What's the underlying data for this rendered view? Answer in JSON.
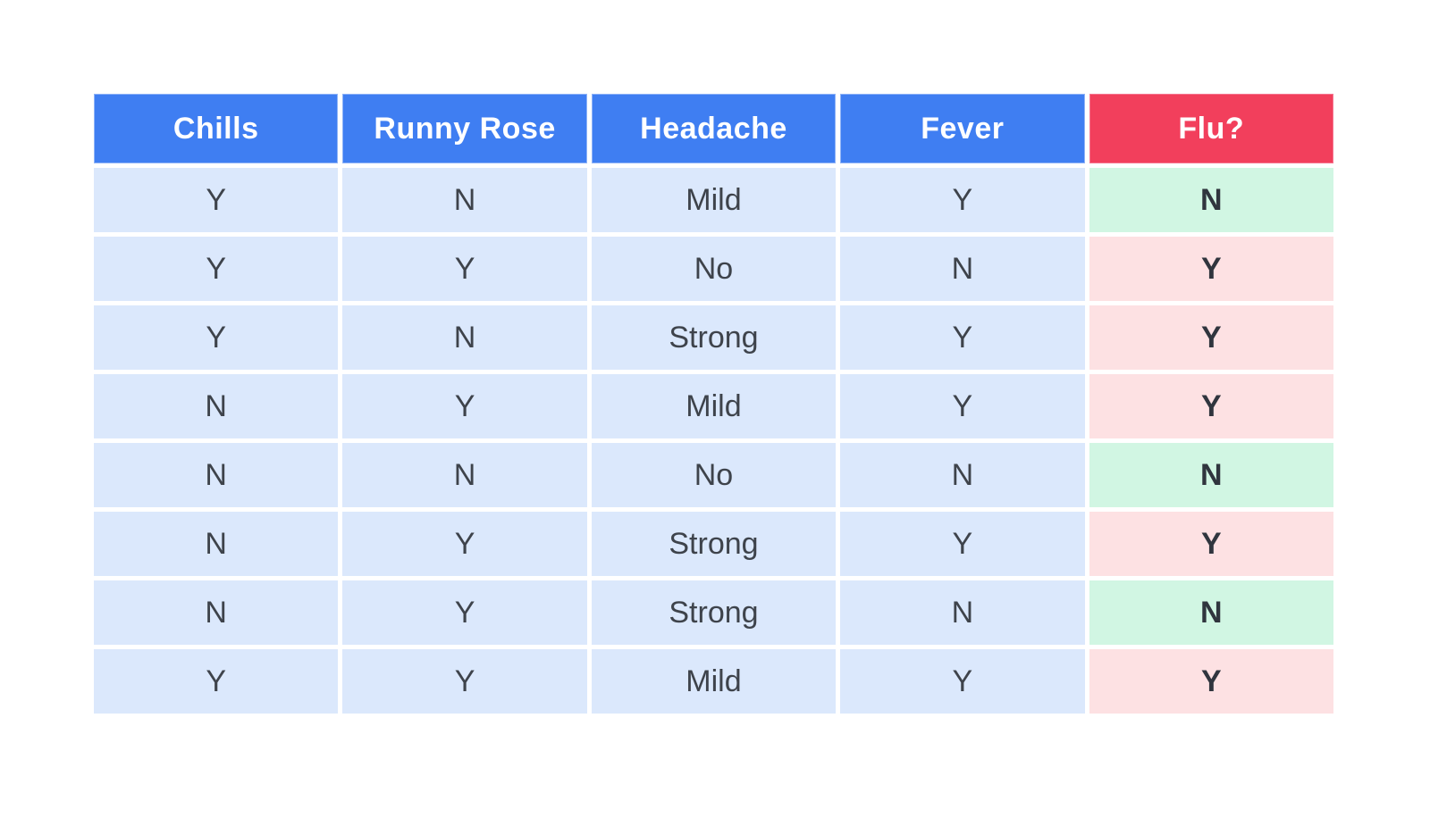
{
  "table": {
    "columns": [
      {
        "key": "chills",
        "label": "Chills",
        "role": "feature"
      },
      {
        "key": "runny-rose",
        "label": "Runny Rose",
        "role": "feature"
      },
      {
        "key": "headache",
        "label": "Headache",
        "role": "feature"
      },
      {
        "key": "fever",
        "label": "Fever",
        "role": "feature"
      },
      {
        "key": "flu",
        "label": "Flu?",
        "role": "target"
      }
    ],
    "rows": [
      {
        "values": [
          "Y",
          "N",
          "Mild",
          "Y"
        ],
        "flu": "N"
      },
      {
        "values": [
          "Y",
          "Y",
          "No",
          "N"
        ],
        "flu": "Y"
      },
      {
        "values": [
          "Y",
          "N",
          "Strong",
          "Y"
        ],
        "flu": "Y"
      },
      {
        "values": [
          "N",
          "Y",
          "Mild",
          "Y"
        ],
        "flu": "Y"
      },
      {
        "values": [
          "N",
          "N",
          "No",
          "N"
        ],
        "flu": "N"
      },
      {
        "values": [
          "N",
          "Y",
          "Strong",
          "Y"
        ],
        "flu": "Y"
      },
      {
        "values": [
          "N",
          "Y",
          "Strong",
          "N"
        ],
        "flu": "N"
      },
      {
        "values": [
          "Y",
          "Y",
          "Mild",
          "Y"
        ],
        "flu": "Y"
      }
    ],
    "flu_negative_value": "N"
  },
  "colors": {
    "header_feature_bg": "#3F7EF2",
    "header_target_bg": "#F23F5C",
    "header_text": "#FFFFFF",
    "row_bg": "#DBE8FC",
    "flu_no_bg": "#D1F6E3",
    "flu_yes_bg": "#FDE1E3",
    "cell_text": "#3E434B",
    "flu_text": "#30353E",
    "page_bg": "#FFFFFF"
  },
  "chart_data": {
    "type": "table",
    "columns": [
      "Chills",
      "Runny Rose",
      "Headache",
      "Fever",
      "Flu?"
    ],
    "rows": [
      [
        "Y",
        "N",
        "Mild",
        "Y",
        "N"
      ],
      [
        "Y",
        "Y",
        "No",
        "N",
        "Y"
      ],
      [
        "Y",
        "N",
        "Strong",
        "Y",
        "Y"
      ],
      [
        "N",
        "Y",
        "Mild",
        "Y",
        "Y"
      ],
      [
        "N",
        "N",
        "No",
        "N",
        "N"
      ],
      [
        "N",
        "Y",
        "Strong",
        "Y",
        "Y"
      ],
      [
        "N",
        "Y",
        "Strong",
        "N",
        "N"
      ],
      [
        "Y",
        "Y",
        "Mild",
        "Y",
        "Y"
      ]
    ],
    "layout": {
      "feature_header_color": "#3F7EF2",
      "target_header_color": "#F23F5C",
      "flu_value_highlight": "Flu? cell is green-tinted when N, red/pink-tinted when Y"
    }
  }
}
